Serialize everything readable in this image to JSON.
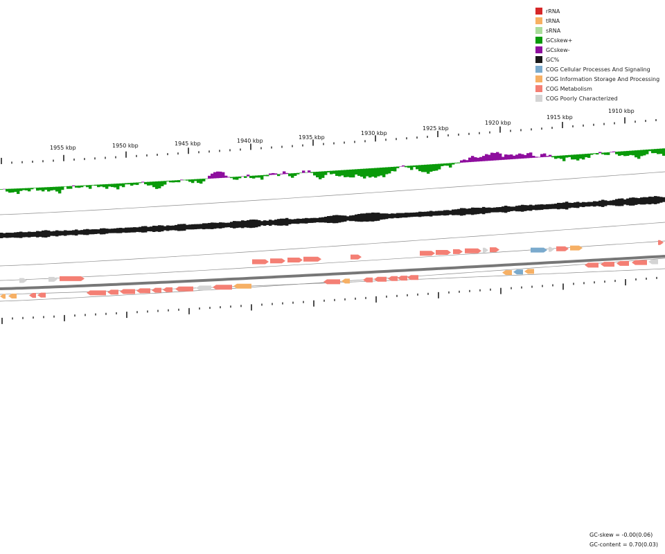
{
  "colors": {
    "rRNA": "#d62728",
    "tRNA": "#f7b062",
    "sRNA": "#a9dc9a",
    "gcskew_pos": "#0a9a0a",
    "gcskew_neg": "#8e0e9e",
    "gc_percent": "#1a1a1a",
    "cog_cellular": "#7aaacd",
    "cog_information": "#f6b065",
    "cog_metabolism": "#f47f74",
    "cog_poor": "#d4d4d4",
    "backbone": "#777777"
  },
  "legend": [
    {
      "id": "rRNA",
      "label": "rRNA",
      "color": "#d62728"
    },
    {
      "id": "tRNA",
      "label": "tRNA",
      "color": "#f7b062"
    },
    {
      "id": "sRNA",
      "label": "sRNA",
      "color": "#a9dc9a"
    },
    {
      "id": "gcskew-pos",
      "label": "GCskew+",
      "color": "#0a9a0a"
    },
    {
      "id": "gcskew-neg",
      "label": "GCskew-",
      "color": "#8e0e9e"
    },
    {
      "id": "gc-percent",
      "label": "GC%",
      "color": "#1a1a1a"
    },
    {
      "id": "cog-cellular",
      "label": "COG Cellular Processes And Signaling",
      "color": "#7aaacd"
    },
    {
      "id": "cog-information",
      "label": "COG Information Storage And Processing",
      "color": "#f6b065"
    },
    {
      "id": "cog-metabolism",
      "label": "COG Metabolism",
      "color": "#f47f74"
    },
    {
      "id": "cog-poor",
      "label": "COG Poorly Characterized",
      "color": "#d4d4d4"
    }
  ],
  "scale": {
    "unit": "kbp",
    "labels": [
      "1955 kbp",
      "1950 kbp",
      "1945 kbp",
      "1940 kbp",
      "1935 kbp",
      "1930 kbp",
      "1925 kbp",
      "1920 kbp",
      "1915 kbp",
      "1910 kbp"
    ]
  },
  "stats": {
    "gc_skew": "GC-skew = -0.00(0.06)",
    "gc_content": "GC-content = 0.70(0.03)"
  }
}
